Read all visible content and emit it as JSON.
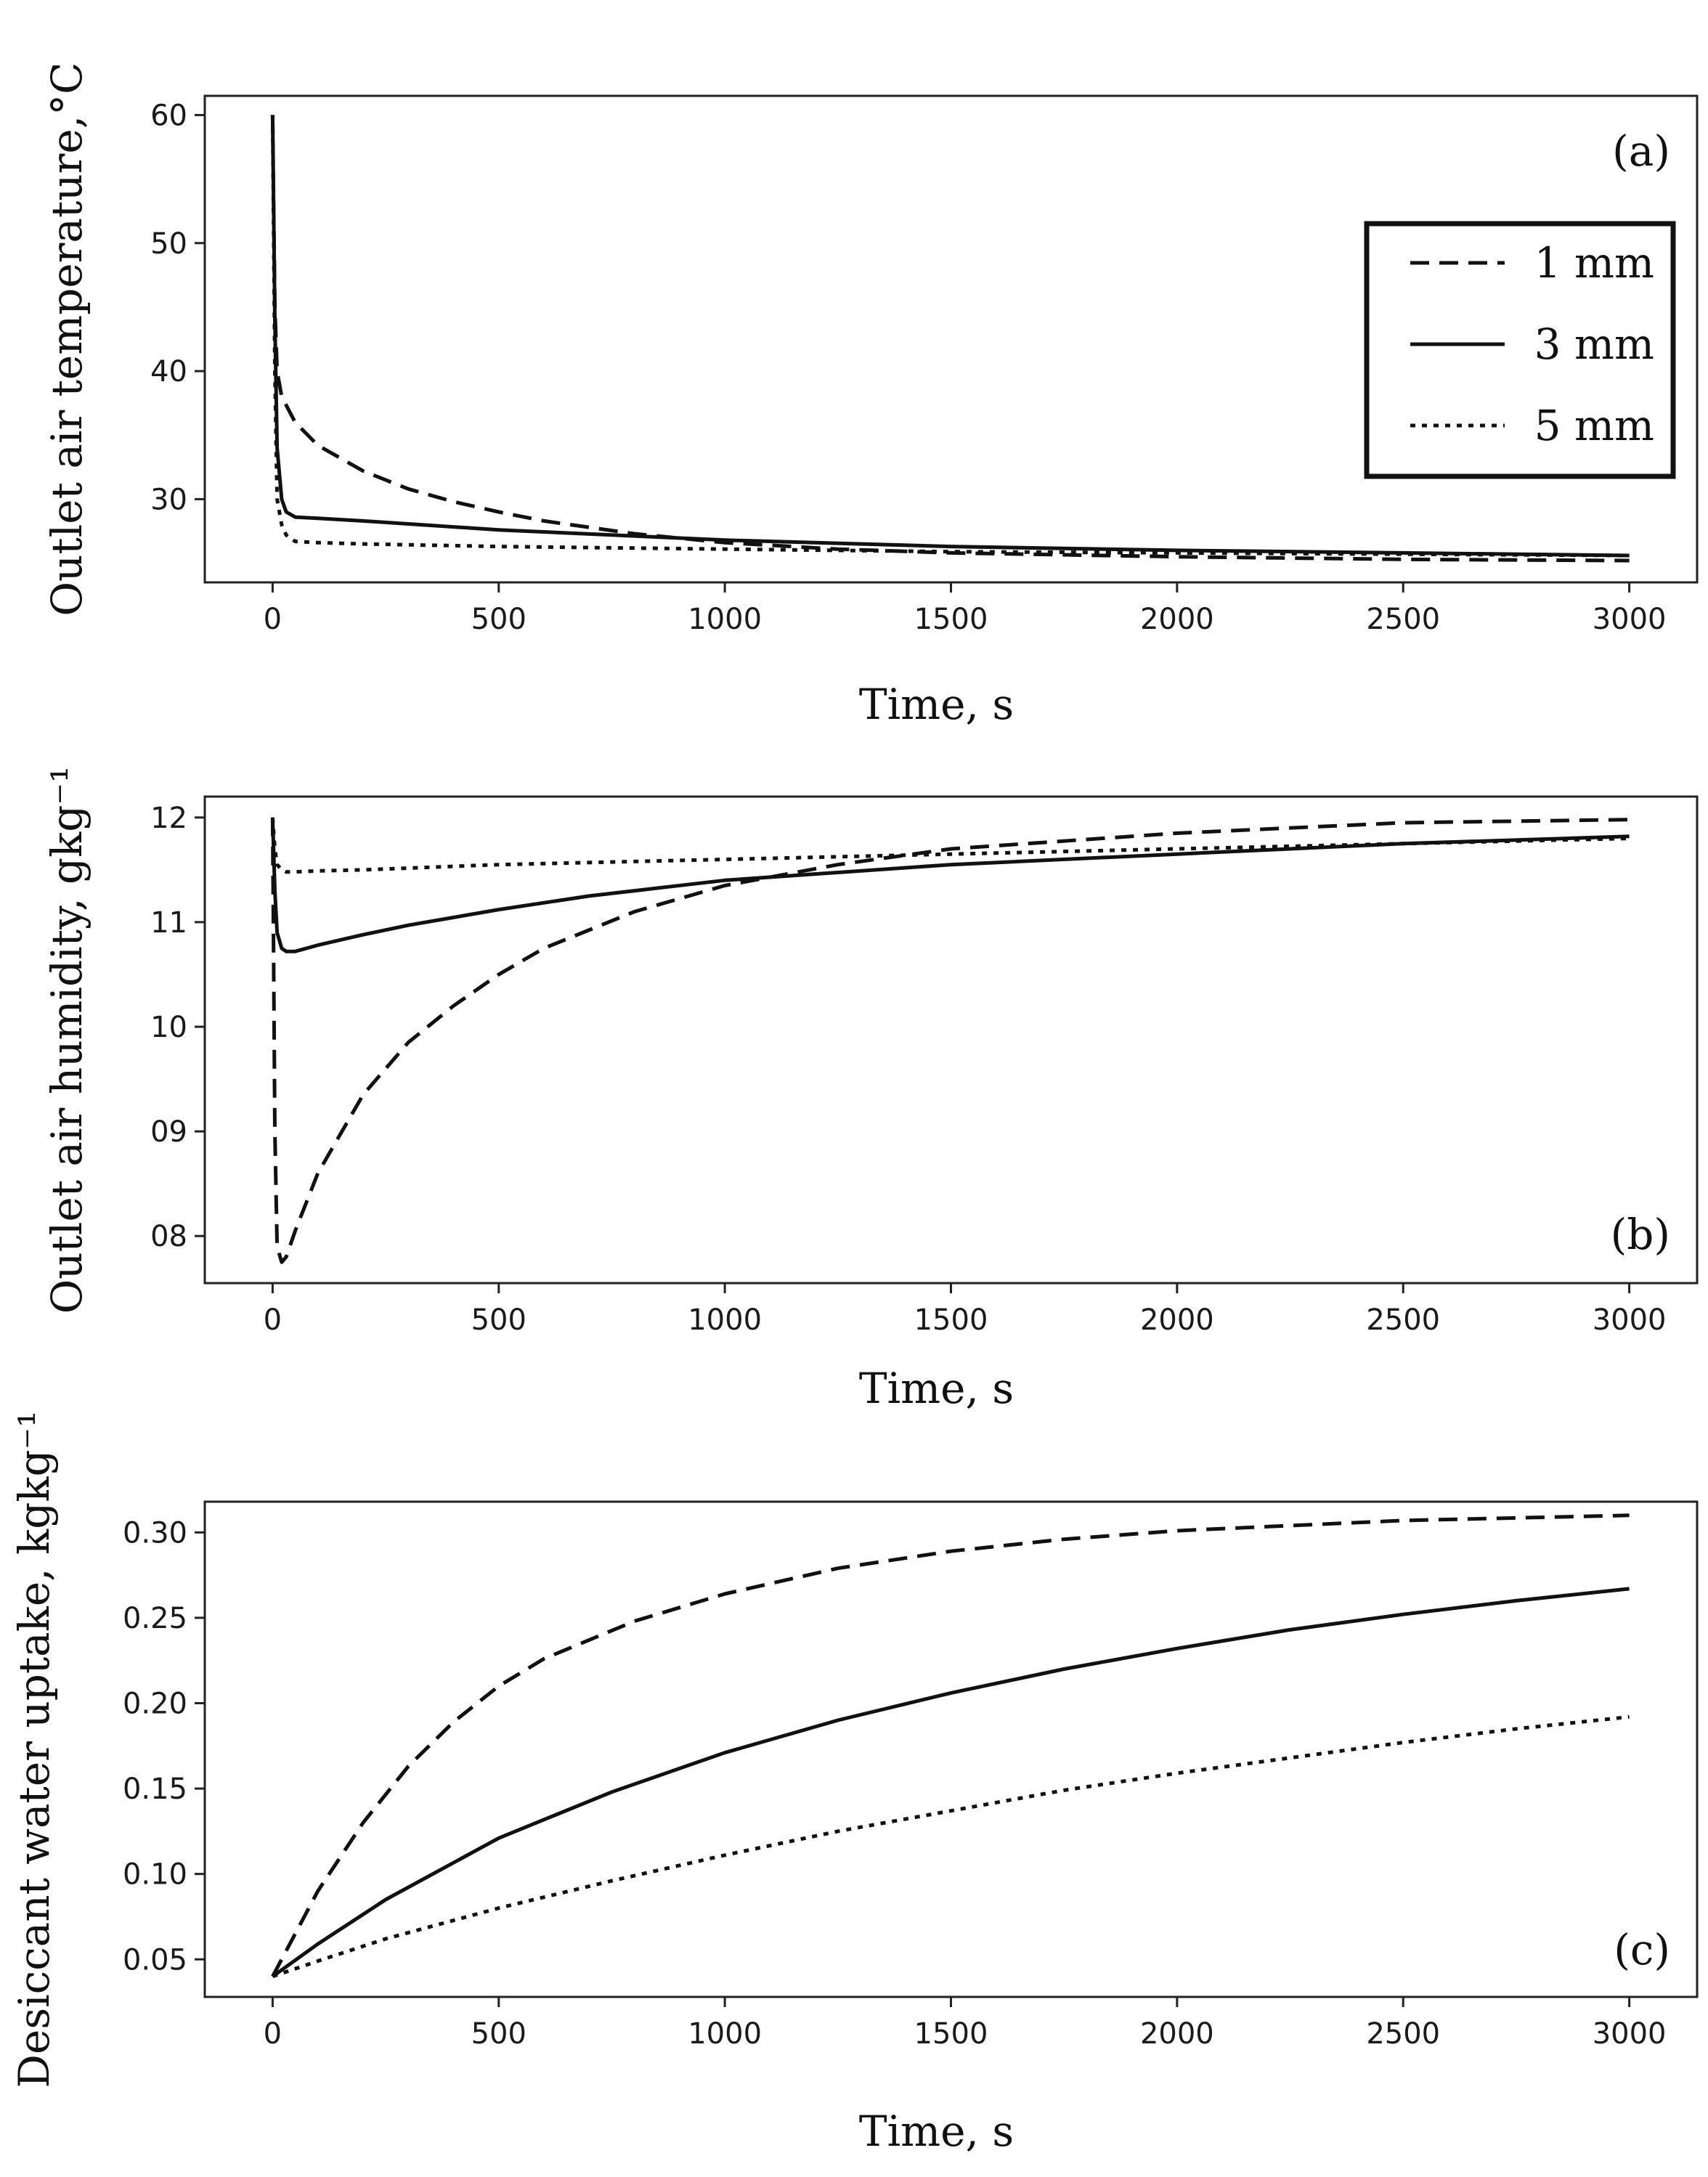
{
  "chart_data": [
    {
      "type": "line",
      "panel_label": "(a)",
      "xlabel": "Time, s",
      "ylabel": "Outlet air temperature,°C",
      "xlim": [
        -150,
        3150
      ],
      "ylim": [
        23.5,
        61.5
      ],
      "xticks": [
        0,
        500,
        1000,
        1500,
        2000,
        2500,
        3000
      ],
      "xtick_labels": [
        "0",
        "500",
        "1000",
        "1500",
        "2000",
        "2500",
        "3000"
      ],
      "yticks": [
        30,
        40,
        50,
        60
      ],
      "ytick_labels": [
        "30",
        "40",
        "50",
        "60"
      ],
      "legend": {
        "position": "upper-right",
        "entries": [
          "1 mm",
          "3 mm",
          "5 mm"
        ]
      },
      "series": [
        {
          "name": "1 mm",
          "style": "dashed",
          "x": [
            0,
            5,
            10,
            20,
            50,
            100,
            200,
            300,
            400,
            500,
            600,
            800,
            1000,
            1250,
            1500,
            2000,
            2500,
            3000
          ],
          "y": [
            60,
            45,
            40,
            38,
            36,
            34.2,
            32.2,
            30.8,
            29.8,
            29.0,
            28.3,
            27.3,
            26.6,
            26.1,
            25.8,
            25.5,
            25.3,
            25.2
          ]
        },
        {
          "name": "3 mm",
          "style": "solid",
          "x": [
            0,
            5,
            10,
            20,
            30,
            50,
            100,
            200,
            500,
            1000,
            1500,
            2000,
            2500,
            3000
          ],
          "y": [
            60,
            44,
            34,
            30,
            29,
            28.6,
            28.5,
            28.3,
            27.6,
            26.8,
            26.3,
            26.0,
            25.8,
            25.6
          ]
        },
        {
          "name": "5 mm",
          "style": "dotted",
          "x": [
            0,
            5,
            10,
            20,
            30,
            50,
            100,
            200,
            500,
            1000,
            1500,
            2000,
            2500,
            3000
          ],
          "y": [
            60,
            40,
            30,
            28,
            27.2,
            26.7,
            26.6,
            26.5,
            26.3,
            26.1,
            25.9,
            25.8,
            25.7,
            25.6
          ]
        }
      ]
    },
    {
      "type": "line",
      "panel_label": "(b)",
      "xlabel": "Time, s",
      "ylabel": "Outlet air humidity, gkg⁻¹",
      "xlim": [
        -150,
        3150
      ],
      "ylim": [
        7.55,
        12.2
      ],
      "xticks": [
        0,
        500,
        1000,
        1500,
        2000,
        2500,
        3000
      ],
      "xtick_labels": [
        "0",
        "500",
        "1000",
        "1500",
        "2000",
        "2500",
        "3000"
      ],
      "yticks": [
        8,
        9,
        10,
        11,
        12
      ],
      "ytick_labels": [
        "08",
        "09",
        "10",
        "11",
        "12"
      ],
      "series": [
        {
          "name": "1 mm",
          "style": "dashed",
          "x": [
            0,
            5,
            10,
            20,
            30,
            50,
            100,
            200,
            300,
            400,
            500,
            600,
            800,
            1000,
            1250,
            1500,
            2000,
            2500,
            3000
          ],
          "y": [
            12.0,
            9.0,
            7.9,
            7.75,
            7.8,
            8.05,
            8.6,
            9.35,
            9.85,
            10.2,
            10.5,
            10.75,
            11.1,
            11.35,
            11.55,
            11.7,
            11.85,
            11.95,
            11.98
          ]
        },
        {
          "name": "3 mm",
          "style": "solid",
          "x": [
            0,
            5,
            10,
            20,
            30,
            50,
            100,
            200,
            300,
            500,
            700,
            1000,
            1500,
            2000,
            2500,
            3000
          ],
          "y": [
            12.0,
            11.3,
            10.9,
            10.75,
            10.72,
            10.72,
            10.78,
            10.88,
            10.97,
            11.12,
            11.25,
            11.4,
            11.55,
            11.65,
            11.75,
            11.82
          ]
        },
        {
          "name": "5 mm",
          "style": "dotted",
          "x": [
            0,
            5,
            10,
            20,
            30,
            50,
            100,
            200,
            500,
            1000,
            1500,
            2000,
            2500,
            3000
          ],
          "y": [
            12.0,
            11.7,
            11.55,
            11.5,
            11.48,
            11.48,
            11.49,
            11.5,
            11.55,
            11.6,
            11.65,
            11.7,
            11.75,
            11.8
          ]
        }
      ]
    },
    {
      "type": "line",
      "panel_label": "(c)",
      "xlabel": "Time, s",
      "ylabel": "Desiccant water uptake, kgkg⁻¹",
      "xlim": [
        -150,
        3150
      ],
      "ylim": [
        0.028,
        0.318
      ],
      "xticks": [
        0,
        500,
        1000,
        1500,
        2000,
        2500,
        3000
      ],
      "xtick_labels": [
        "0",
        "500",
        "1000",
        "1500",
        "2000",
        "2500",
        "3000"
      ],
      "yticks": [
        0.05,
        0.1,
        0.15,
        0.2,
        0.25,
        0.3
      ],
      "ytick_labels": [
        "0.05",
        "0.10",
        "0.15",
        "0.20",
        "0.25",
        "0.30"
      ],
      "series": [
        {
          "name": "1 mm",
          "style": "dashed",
          "x": [
            0,
            100,
            200,
            300,
            400,
            500,
            600,
            800,
            1000,
            1250,
            1500,
            1750,
            2000,
            2500,
            3000
          ],
          "y": [
            0.04,
            0.09,
            0.13,
            0.163,
            0.189,
            0.21,
            0.226,
            0.248,
            0.264,
            0.279,
            0.289,
            0.296,
            0.301,
            0.307,
            0.31
          ]
        },
        {
          "name": "3 mm",
          "style": "solid",
          "x": [
            0,
            100,
            250,
            500,
            750,
            1000,
            1250,
            1500,
            1750,
            2000,
            2250,
            2500,
            2750,
            3000
          ],
          "y": [
            0.04,
            0.059,
            0.085,
            0.121,
            0.148,
            0.171,
            0.19,
            0.206,
            0.22,
            0.232,
            0.243,
            0.252,
            0.26,
            0.267
          ]
        },
        {
          "name": "5 mm",
          "style": "dotted",
          "x": [
            0,
            100,
            250,
            500,
            750,
            1000,
            1250,
            1500,
            1750,
            2000,
            2250,
            2500,
            2750,
            3000
          ],
          "y": [
            0.04,
            0.049,
            0.062,
            0.08,
            0.096,
            0.111,
            0.125,
            0.137,
            0.149,
            0.159,
            0.168,
            0.177,
            0.185,
            0.192
          ]
        }
      ]
    }
  ]
}
